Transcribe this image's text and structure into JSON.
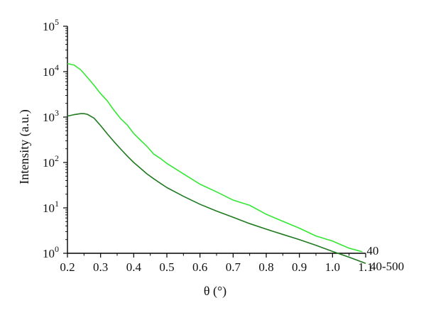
{
  "chart_data": {
    "type": "line",
    "xlabel": "θ (°)",
    "ylabel": "Intensity (a.u.)",
    "x_ticks": [
      "0.2",
      "0.3",
      "0.4",
      "0.5",
      "0.6",
      "0.7",
      "0.8",
      "0.9",
      "1.0",
      "1.1"
    ],
    "x_tick_values": [
      0.2,
      0.3,
      0.4,
      0.5,
      0.6,
      0.7,
      0.8,
      0.9,
      1.0,
      1.1
    ],
    "y_ticks": [
      {
        "base": "10",
        "exp": "0",
        "value": 1
      },
      {
        "base": "10",
        "exp": "1",
        "value": 10
      },
      {
        "base": "10",
        "exp": "2",
        "value": 100
      },
      {
        "base": "10",
        "exp": "3",
        "value": 1000
      },
      {
        "base": "10",
        "exp": "4",
        "value": 10000
      },
      {
        "base": "10",
        "exp": "5",
        "value": 100000
      }
    ],
    "xlim": [
      0.2,
      1.1
    ],
    "ylim": [
      1,
      100000
    ],
    "y_scale": "log",
    "grid": false,
    "series": [
      {
        "name": "40",
        "color": "#33e833",
        "x": [
          0.2,
          0.22,
          0.24,
          0.26,
          0.28,
          0.3,
          0.32,
          0.34,
          0.36,
          0.38,
          0.4,
          0.42,
          0.44,
          0.46,
          0.48,
          0.5,
          0.55,
          0.6,
          0.65,
          0.7,
          0.75,
          0.8,
          0.85,
          0.9,
          0.95,
          1.0,
          1.05,
          1.09
        ],
        "y": [
          15000,
          14000,
          11000,
          7500,
          5000,
          3400,
          2200,
          1450,
          950,
          650,
          450,
          310,
          220,
          160,
          120,
          95,
          58,
          32,
          23,
          15,
          11,
          7.5,
          5,
          3.5,
          2.5,
          1.8,
          1.3,
          1.08
        ]
      },
      {
        "name": "40-500",
        "color": "#1f7a1f",
        "x": [
          0.2,
          0.22,
          0.24,
          0.25,
          0.26,
          0.28,
          0.3,
          0.32,
          0.34,
          0.36,
          0.38,
          0.4,
          0.42,
          0.44,
          0.46,
          0.48,
          0.5,
          0.55,
          0.6,
          0.65,
          0.7,
          0.75,
          0.8,
          0.85,
          0.9,
          0.95,
          1.0,
          1.05,
          1.1
        ],
        "y": [
          1050,
          1130,
          1190,
          1190,
          1150,
          950,
          650,
          430,
          290,
          200,
          140,
          100,
          75,
          56,
          44,
          35,
          28,
          18,
          12,
          8.5,
          6.2,
          4.5,
          3.4,
          2.6,
          2.0,
          1.5,
          1.1,
          0.82,
          0.6
        ]
      }
    ]
  }
}
